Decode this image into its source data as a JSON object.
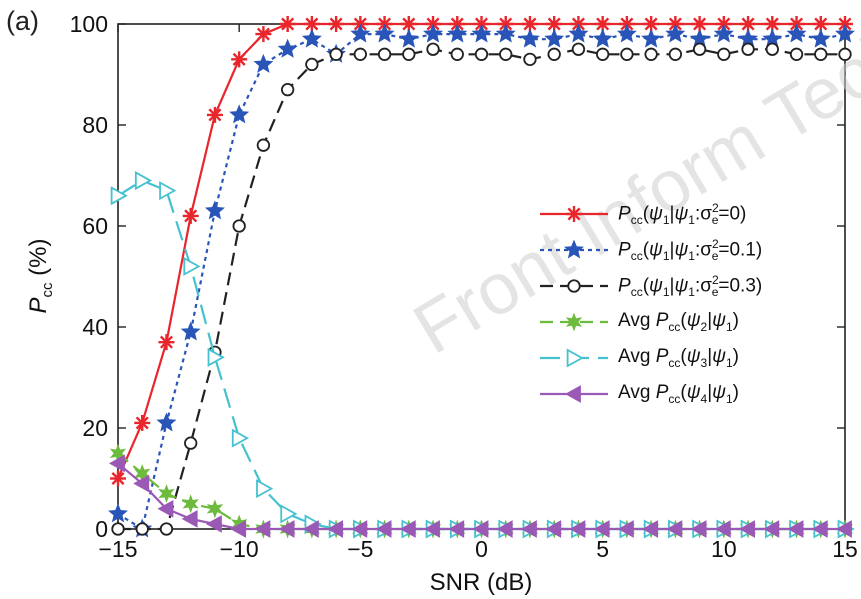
{
  "panel_label": "(a)",
  "watermark": "Front Inform Tech",
  "chart_data": {
    "type": "line",
    "xlabel": "SNR (dB)",
    "ylabel": "P_cc (%)",
    "xlim": [
      -15,
      15
    ],
    "ylim": [
      0,
      100
    ],
    "xticks": [
      -15,
      -10,
      -5,
      0,
      5,
      10,
      15
    ],
    "yticks": [
      0,
      20,
      40,
      60,
      80,
      100
    ],
    "grid": false,
    "legend_position": "center-right",
    "series": [
      {
        "name": "Pcc(ψ1|ψ1:σe²=0)",
        "legend": {
          "prefix": "",
          "P": "P",
          "sub": "cc",
          "arg": "(ψ1|ψ1:σ",
          "sup": "2",
          "supsub": "e",
          "tail": "=0)"
        },
        "color": "#e8262b",
        "dash": "solid",
        "marker": "asterisk",
        "x": [
          -15,
          -14,
          -13,
          -12,
          -11,
          -10,
          -9,
          -8,
          -7,
          -6,
          -5,
          -4,
          -3,
          -2,
          -1,
          0,
          1,
          2,
          3,
          4,
          5,
          6,
          7,
          8,
          9,
          10,
          11,
          12,
          13,
          14,
          15
        ],
        "y": [
          10,
          21,
          37,
          62,
          82,
          93,
          98,
          100,
          100,
          100,
          100,
          100,
          100,
          100,
          100,
          100,
          100,
          100,
          100,
          100,
          100,
          100,
          100,
          100,
          100,
          100,
          100,
          100,
          100,
          100,
          100
        ]
      },
      {
        "name": "Pcc(ψ1|ψ1:σe²=0.1)",
        "legend": {
          "prefix": "",
          "P": "P",
          "sub": "cc",
          "arg": "(ψ1|ψ1:σ",
          "sup": "2",
          "supsub": "e",
          "tail": "=0.1)"
        },
        "color": "#2a55b8",
        "dash": "dotted",
        "marker": "star",
        "x": [
          -15,
          -14,
          -13,
          -12,
          -11,
          -10,
          -9,
          -8,
          -7,
          -6,
          -5,
          -4,
          -3,
          -2,
          -1,
          0,
          1,
          2,
          3,
          4,
          5,
          6,
          7,
          8,
          9,
          10,
          11,
          12,
          13,
          14,
          15
        ],
        "y": [
          3,
          0,
          21,
          39,
          63,
          82,
          92,
          95,
          97,
          94,
          98,
          98,
          97,
          98,
          98,
          98,
          98,
          97,
          97,
          98,
          97,
          98,
          97,
          98,
          97,
          98,
          97,
          97,
          98,
          97,
          98
        ]
      },
      {
        "name": "Pcc(ψ1|ψ1:σe²=0.3)",
        "legend": {
          "prefix": "",
          "P": "P",
          "sub": "cc",
          "arg": "(ψ1|ψ1:σ",
          "sup": "2",
          "supsub": "e",
          "tail": "=0.3)"
        },
        "color": "#222222",
        "dash": "dashed",
        "marker": "circle",
        "x": [
          -15,
          -14,
          -13,
          -12,
          -11,
          -10,
          -9,
          -8,
          -7,
          -6,
          -5,
          -4,
          -3,
          -2,
          -1,
          0,
          1,
          2,
          3,
          4,
          5,
          6,
          7,
          8,
          9,
          10,
          11,
          12,
          13,
          14,
          15
        ],
        "y": [
          0,
          0,
          0,
          17,
          35,
          60,
          76,
          87,
          92,
          94,
          94,
          94,
          94,
          95,
          94,
          94,
          94,
          93,
          94,
          95,
          94,
          94,
          94,
          94,
          95,
          94,
          95,
          95,
          94,
          94,
          94
        ]
      },
      {
        "name": "Avg Pcc(ψ2|ψ1)",
        "legend": {
          "prefix": "Avg ",
          "P": "P",
          "sub": "cc",
          "arg": "(ψ2|ψ1)",
          "sup": "",
          "supsub": "",
          "tail": ""
        },
        "color": "#6cbb3c",
        "dash": "dashed",
        "marker": "hexagram",
        "x": [
          -15,
          -14,
          -13,
          -12,
          -11,
          -10,
          -9,
          -8,
          -7,
          -6,
          -5,
          -4,
          -3,
          -2,
          -1,
          0,
          1,
          2,
          3,
          4,
          5,
          6,
          7,
          8,
          9,
          10,
          11,
          12,
          13,
          14,
          15
        ],
        "y": [
          15,
          11,
          7,
          5,
          4,
          1,
          0,
          0,
          0,
          0,
          0,
          0,
          0,
          0,
          0,
          0,
          0,
          0,
          0,
          0,
          0,
          0,
          0,
          0,
          0,
          0,
          0,
          0,
          0,
          0,
          0
        ]
      },
      {
        "name": "Avg Pcc(ψ3|ψ1)",
        "legend": {
          "prefix": "Avg ",
          "P": "P",
          "sub": "cc",
          "arg": "(ψ3|ψ1)",
          "sup": "",
          "supsub": "",
          "tail": ""
        },
        "color": "#45c1cf",
        "dash": "longdash",
        "marker": "triangle-right",
        "x": [
          -15,
          -14,
          -13,
          -12,
          -11,
          -10,
          -9,
          -8,
          -7,
          -6,
          -5,
          -4,
          -3,
          -2,
          -1,
          0,
          1,
          2,
          3,
          4,
          5,
          6,
          7,
          8,
          9,
          10,
          11,
          12,
          13,
          14,
          15
        ],
        "y": [
          66,
          69,
          67,
          52,
          34,
          18,
          8,
          3,
          1,
          0,
          0,
          0,
          0,
          0,
          0,
          0,
          0,
          0,
          0,
          0,
          0,
          0,
          0,
          0,
          0,
          0,
          0,
          0,
          0,
          0,
          0
        ]
      },
      {
        "name": "Avg Pcc(ψ4|ψ1)",
        "legend": {
          "prefix": "Avg ",
          "P": "P",
          "sub": "cc",
          "arg": "(ψ4|ψ1)",
          "sup": "",
          "supsub": "",
          "tail": ""
        },
        "color": "#9b59b6",
        "dash": "solid",
        "marker": "triangle-left",
        "x": [
          -15,
          -14,
          -13,
          -12,
          -11,
          -10,
          -9,
          -8,
          -7,
          -6,
          -5,
          -4,
          -3,
          -2,
          -1,
          0,
          1,
          2,
          3,
          4,
          5,
          6,
          7,
          8,
          9,
          10,
          11,
          12,
          13,
          14,
          15
        ],
        "y": [
          13,
          9,
          4,
          2,
          1,
          0,
          0,
          0,
          0,
          0,
          0,
          0,
          0,
          0,
          0,
          0,
          0,
          0,
          0,
          0,
          0,
          0,
          0,
          0,
          0,
          0,
          0,
          0,
          0,
          0,
          0
        ]
      }
    ]
  }
}
